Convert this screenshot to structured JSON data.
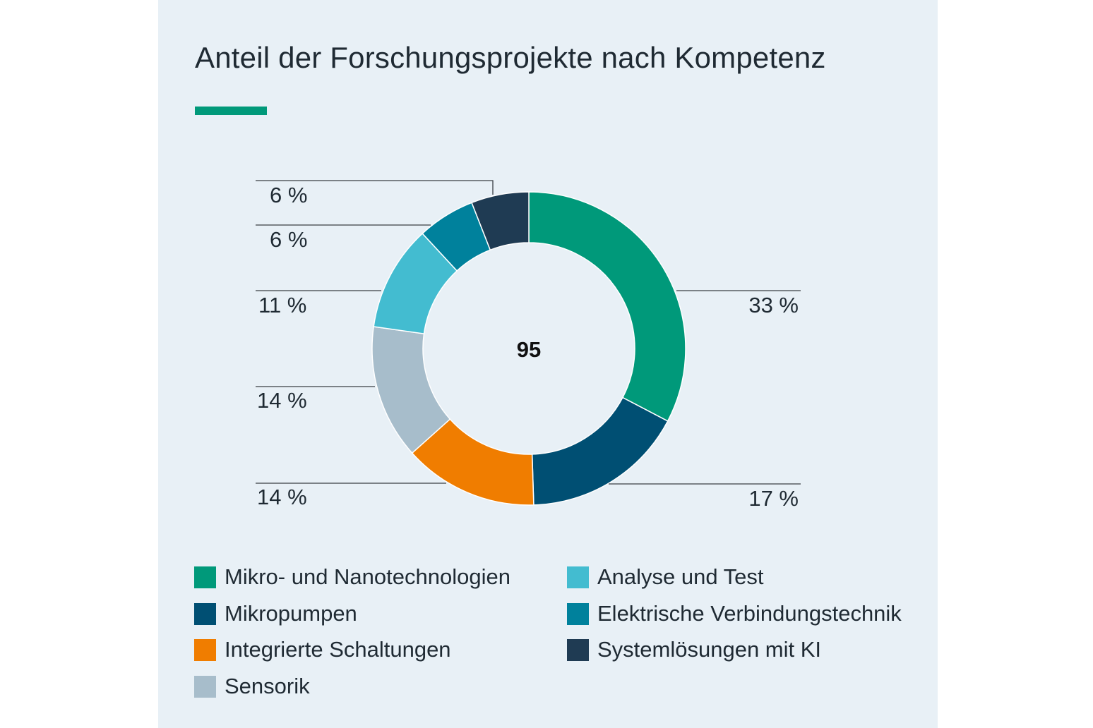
{
  "title": "Anteil der Forschungsprojekte nach Kompetenz",
  "accent_color": "#00997a",
  "center_label": "95",
  "chart_data": {
    "type": "pie",
    "title": "Anteil der Forschungsprojekte nach Kompetenz",
    "total": 95,
    "unit": "%",
    "legend_position": "bottom",
    "slices": [
      {
        "name": "Mikro- und Nanotechnologien",
        "value": 33,
        "label": "33 %",
        "color": "#00997a"
      },
      {
        "name": "Mikropumpen",
        "value": 17,
        "label": "17 %",
        "color": "#004f73"
      },
      {
        "name": "Integrierte Schaltungen",
        "value": 14,
        "label": "14 %",
        "color": "#f07d00"
      },
      {
        "name": "Sensorik",
        "value": 14,
        "label": "14 %",
        "color": "#a7bdcb"
      },
      {
        "name": "Analyse und Test",
        "value": 11,
        "label": "11 %",
        "color": "#43bcd0"
      },
      {
        "name": "Elektrische Verbindungstechnik",
        "value": 6,
        "label": "6 %",
        "color": "#00819c"
      },
      {
        "name": "Systemlösungen mit KI",
        "value": 6,
        "label": "6 %",
        "color": "#1f3b53"
      }
    ]
  }
}
